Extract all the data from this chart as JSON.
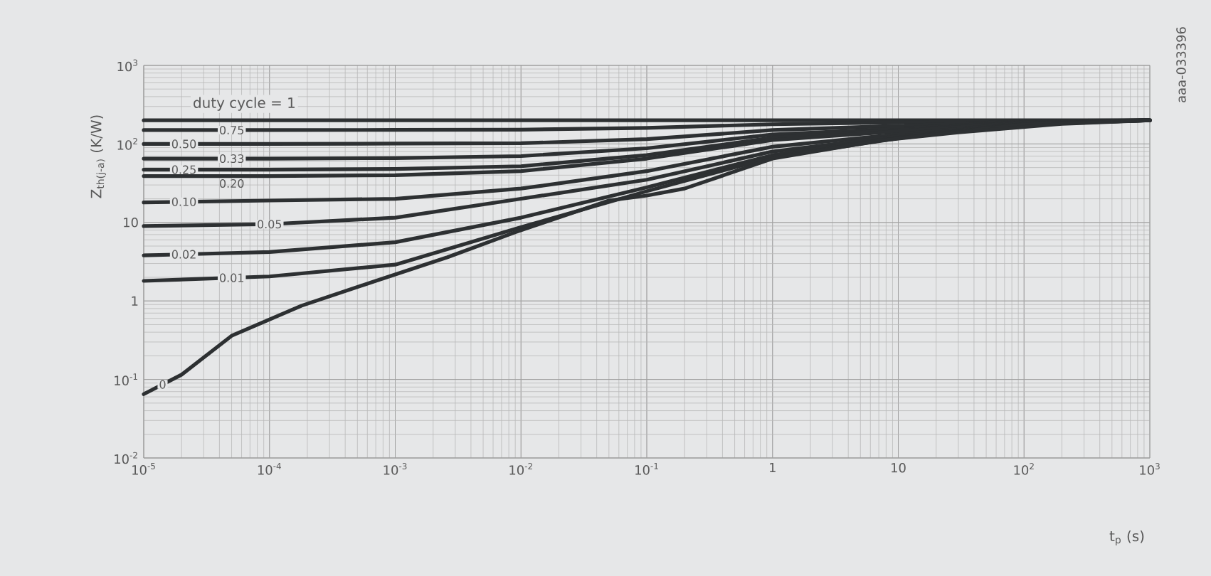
{
  "chart_data": {
    "type": "line",
    "log": "xy",
    "grid": true,
    "line_style": "solid",
    "marker": "none",
    "xlabel": "t$_{p}$ (s)",
    "ylabel": "Z$_{th(j-a)}$ (K/W)",
    "annotations": [
      "aaa-033396"
    ],
    "xlim": [
      1e-05,
      1000
    ],
    "ylim": [
      0.01,
      1000
    ],
    "xticks": [
      {
        "value": 1e-05,
        "label": "10$^{-5}$"
      },
      {
        "value": 0.0001,
        "label": "10$^{-4}$"
      },
      {
        "value": 0.001,
        "label": "10$^{-3}$"
      },
      {
        "value": 0.01,
        "label": "10$^{-2}$"
      },
      {
        "value": 0.1,
        "label": "10$^{-1}$"
      },
      1,
      10,
      {
        "value": 100,
        "label": "10$^{2}$"
      },
      {
        "value": 1000,
        "label": "10$^{3}$"
      }
    ],
    "yticks": [
      {
        "value": 0.01,
        "label": "10$^{-2}$"
      },
      {
        "value": 0.1,
        "label": "10$^{-1}$"
      },
      1,
      10,
      {
        "value": 100,
        "label": "10$^{2}$"
      },
      {
        "value": 1000,
        "label": "10$^{3}$"
      }
    ],
    "x": [
      1e-05,
      0.0001,
      0.001,
      0.01,
      0.1,
      1,
      10,
      100,
      1000
    ],
    "series": [
      {
        "name": "duty cycle = 1",
        "color": "#2d3032",
        "values": [
          200,
          200,
          200,
          200,
          200,
          200,
          200,
          200,
          200
        ]
      },
      {
        "name": "0.75",
        "color": "#2d3032",
        "values": [
          150,
          150,
          151,
          152,
          160,
          178,
          188,
          197,
          200
        ]
      },
      {
        "name": "0.50",
        "color": "#2d3032",
        "values": [
          100,
          100,
          101,
          102,
          115,
          150,
          170,
          193,
          200
        ]
      },
      {
        "name": "0.33",
        "color": "#2d3032",
        "values": [
          65,
          65,
          66,
          70,
          88,
          132,
          157,
          190,
          200
        ]
      },
      {
        "name": "0.25",
        "color": "#2d3032",
        "values": [
          47,
          47,
          48,
          52,
          72,
          120,
          150,
          188,
          200
        ]
      },
      {
        "name": "0.20",
        "color": "#2d3032",
        "values": [
          39,
          39,
          40,
          45,
          65,
          112,
          145,
          186,
          200
        ]
      },
      {
        "name": "0.10",
        "color": "#2d3032",
        "values": [
          18,
          19,
          20,
          27,
          45,
          92,
          133,
          183,
          200
        ]
      },
      {
        "name": "0.05",
        "color": "#2d3032",
        "values": [
          9,
          9.5,
          11.5,
          20,
          35,
          80,
          125,
          180,
          200
        ]
      },
      {
        "name": "0.02",
        "color": "#2d3032",
        "values": [
          3.8,
          4.2,
          5.6,
          11.5,
          28,
          72,
          120,
          178,
          200
        ]
      },
      {
        "name": "0.01",
        "color": "#2d3032",
        "values": [
          1.8,
          2.05,
          2.9,
          8.7,
          25,
          68,
          118,
          177,
          200
        ]
      },
      {
        "name": "0",
        "color": "#2d3032",
        "x": [
          1e-05,
          2e-05,
          5e-05,
          0.00018,
          0.0007,
          0.0026,
          0.009,
          0.05,
          0.1,
          0.2,
          1,
          7,
          30,
          200,
          1000
        ],
        "values": [
          0.065,
          0.115,
          0.36,
          0.87,
          1.8,
          3.6,
          7.5,
          19,
          22,
          27,
          65,
          110,
          140,
          180,
          200
        ]
      }
    ]
  }
}
